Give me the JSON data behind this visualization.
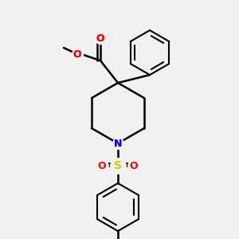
{
  "background_color": "#f0f0f0",
  "bond_color": "#000000",
  "atom_colors": {
    "O": "#ff0000",
    "N": "#0000ff",
    "S": "#cccc00",
    "C": "#000000"
  },
  "figsize": [
    3.0,
    3.0
  ],
  "dpi": 100
}
